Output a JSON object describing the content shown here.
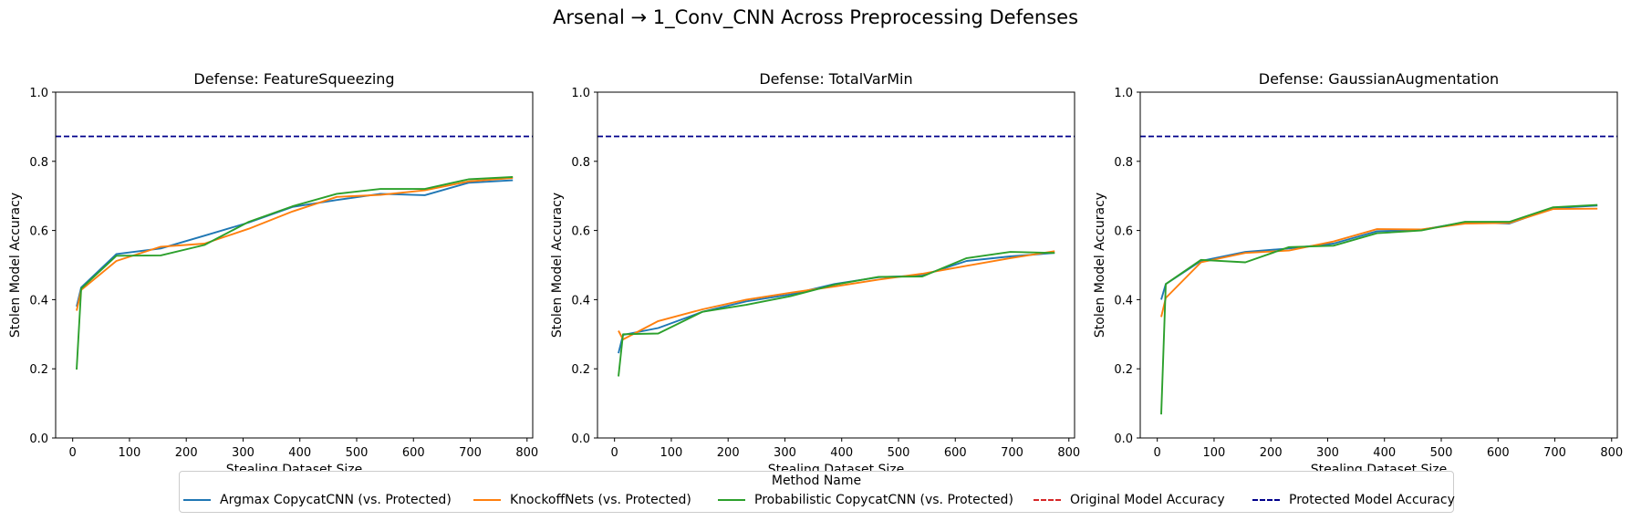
{
  "figure": {
    "title": "Arsenal → 1_Conv_CNN Across Preprocessing Defenses"
  },
  "legend": {
    "title": "Method Name",
    "entries": [
      {
        "label": "Argmax CopycatCNN (vs. Protected)",
        "color": "#1f77b4",
        "style": "solid"
      },
      {
        "label": "KnockoffNets (vs. Protected)",
        "color": "#ff7f0e",
        "style": "solid"
      },
      {
        "label": "Probabilistic CopycatCNN (vs. Protected)",
        "color": "#2ca02c",
        "style": "solid"
      },
      {
        "label": "Original Model Accuracy",
        "color": "#d62728",
        "style": "dashed"
      },
      {
        "label": "Protected Model Accuracy",
        "color": "#00008b",
        "style": "dashed"
      }
    ]
  },
  "chart_data": [
    {
      "type": "line",
      "title": "Defense: FeatureSqueezing",
      "xlabel": "Stealing Dataset Size",
      "ylabel": "Stolen Model Accuracy",
      "xlim": [
        -30,
        810
      ],
      "ylim": [
        0.0,
        1.0
      ],
      "xticks": [
        0,
        100,
        200,
        300,
        400,
        500,
        600,
        700,
        800
      ],
      "yticks": [
        0.0,
        0.2,
        0.4,
        0.6,
        0.8,
        1.0
      ],
      "hlines": [
        {
          "name": "Protected Model Accuracy",
          "y": 0.872,
          "color": "#00008b",
          "style": "dashed"
        }
      ],
      "series": [
        {
          "name": "Argmax CopycatCNN (vs. Protected)",
          "color": "#1f77b4",
          "x": [
            7,
            15,
            77,
            155,
            232,
            310,
            387,
            465,
            542,
            620,
            697,
            775
          ],
          "y": [
            0.38,
            0.435,
            0.532,
            0.548,
            0.585,
            0.623,
            0.668,
            0.688,
            0.706,
            0.702,
            0.738,
            0.745
          ]
        },
        {
          "name": "KnockoffNets (vs. Protected)",
          "color": "#ff7f0e",
          "x": [
            7,
            15,
            77,
            155,
            232,
            310,
            387,
            465,
            542,
            620,
            697,
            775
          ],
          "y": [
            0.368,
            0.428,
            0.512,
            0.553,
            0.562,
            0.605,
            0.655,
            0.697,
            0.703,
            0.716,
            0.742,
            0.752
          ]
        },
        {
          "name": "Probabilistic CopycatCNN (vs. Protected)",
          "color": "#2ca02c",
          "x": [
            7,
            15,
            77,
            155,
            232,
            310,
            387,
            465,
            542,
            620,
            697,
            775
          ],
          "y": [
            0.198,
            0.432,
            0.527,
            0.528,
            0.558,
            0.625,
            0.67,
            0.706,
            0.72,
            0.72,
            0.748,
            0.755
          ]
        }
      ]
    },
    {
      "type": "line",
      "title": "Defense: TotalVarMin",
      "xlabel": "Stealing Dataset Size",
      "ylabel": "Stolen Model Accuracy",
      "xlim": [
        -30,
        810
      ],
      "ylim": [
        0.0,
        1.0
      ],
      "xticks": [
        0,
        100,
        200,
        300,
        400,
        500,
        600,
        700,
        800
      ],
      "yticks": [
        0.0,
        0.2,
        0.4,
        0.6,
        0.8,
        1.0
      ],
      "hlines": [
        {
          "name": "Protected Model Accuracy",
          "y": 0.872,
          "color": "#00008b",
          "style": "dashed"
        }
      ],
      "series": [
        {
          "name": "Argmax CopycatCNN (vs. Protected)",
          "color": "#1f77b4",
          "x": [
            7,
            15,
            77,
            155,
            232,
            310,
            387,
            465,
            542,
            620,
            697,
            775
          ],
          "y": [
            0.245,
            0.298,
            0.318,
            0.365,
            0.395,
            0.415,
            0.445,
            0.465,
            0.47,
            0.512,
            0.525,
            0.535
          ]
        },
        {
          "name": "KnockoffNets (vs. Protected)",
          "color": "#ff7f0e",
          "x": [
            7,
            15,
            77,
            155,
            232,
            310,
            387,
            465,
            542,
            620,
            697,
            775
          ],
          "y": [
            0.31,
            0.285,
            0.338,
            0.372,
            0.4,
            0.42,
            0.438,
            0.458,
            0.475,
            0.498,
            0.52,
            0.54
          ]
        },
        {
          "name": "Probabilistic CopycatCNN (vs. Protected)",
          "color": "#2ca02c",
          "x": [
            7,
            15,
            77,
            155,
            232,
            310,
            387,
            465,
            542,
            620,
            697,
            775
          ],
          "y": [
            0.178,
            0.3,
            0.302,
            0.365,
            0.385,
            0.41,
            0.443,
            0.466,
            0.467,
            0.52,
            0.538,
            0.535
          ]
        }
      ]
    },
    {
      "type": "line",
      "title": "Defense: GaussianAugmentation",
      "xlabel": "Stealing Dataset Size",
      "ylabel": "Stolen Model Accuracy",
      "xlim": [
        -30,
        810
      ],
      "ylim": [
        0.0,
        1.0
      ],
      "xticks": [
        0,
        100,
        200,
        300,
        400,
        500,
        600,
        700,
        800
      ],
      "yticks": [
        0.0,
        0.2,
        0.4,
        0.6,
        0.8,
        1.0
      ],
      "hlines": [
        {
          "name": "Protected Model Accuracy",
          "y": 0.872,
          "color": "#00008b",
          "style": "dashed"
        }
      ],
      "series": [
        {
          "name": "Argmax CopycatCNN (vs. Protected)",
          "color": "#1f77b4",
          "x": [
            7,
            15,
            77,
            155,
            232,
            310,
            387,
            465,
            542,
            620,
            697,
            775
          ],
          "y": [
            0.4,
            0.445,
            0.512,
            0.538,
            0.548,
            0.562,
            0.598,
            0.602,
            0.624,
            0.62,
            0.665,
            0.672
          ]
        },
        {
          "name": "KnockoffNets (vs. Protected)",
          "color": "#ff7f0e",
          "x": [
            7,
            15,
            77,
            155,
            232,
            310,
            387,
            465,
            542,
            620,
            697,
            775
          ],
          "y": [
            0.35,
            0.405,
            0.508,
            0.535,
            0.542,
            0.568,
            0.604,
            0.603,
            0.62,
            0.622,
            0.662,
            0.663
          ]
        },
        {
          "name": "Probabilistic CopycatCNN (vs. Protected)",
          "color": "#2ca02c",
          "x": [
            7,
            15,
            77,
            155,
            232,
            310,
            387,
            465,
            542,
            620,
            697,
            775
          ],
          "y": [
            0.068,
            0.445,
            0.515,
            0.508,
            0.552,
            0.556,
            0.592,
            0.6,
            0.625,
            0.625,
            0.667,
            0.674
          ]
        }
      ]
    }
  ]
}
